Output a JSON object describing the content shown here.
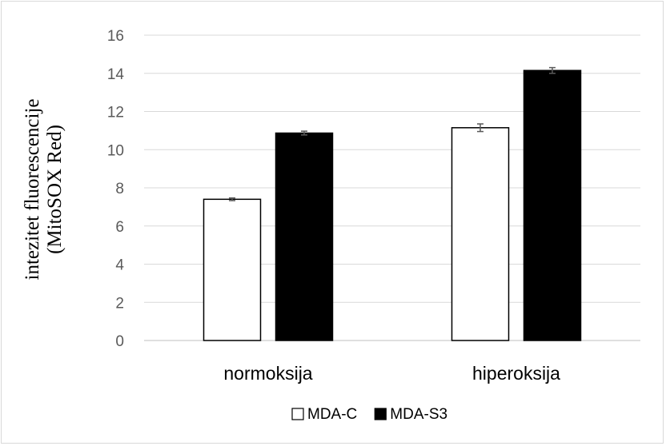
{
  "chart_data": {
    "type": "bar",
    "categories": [
      "normoksija",
      "hiperoksija"
    ],
    "series": [
      {
        "name": "MDA-C",
        "values": [
          7.4,
          11.15
        ],
        "errors": [
          0.07,
          0.2
        ],
        "color": "#ffffff",
        "stroke": "#000000"
      },
      {
        "name": "MDA-S3",
        "values": [
          10.87,
          14.15
        ],
        "errors": [
          0.1,
          0.15
        ],
        "color": "#000000",
        "stroke": "#000000"
      }
    ],
    "ylabel_lines": [
      "intezitet fluorescencije",
      "(MitoSOX Red)"
    ],
    "ylim": [
      0,
      16
    ],
    "yticks": [
      "0",
      "2",
      "4",
      "6",
      "8",
      "10",
      "12",
      "14",
      "16"
    ],
    "grid": true,
    "legend": "bottom",
    "colors": {
      "grid": "#d9d9d9",
      "axis": "#bfbfbf",
      "error_bar": "#595959"
    }
  }
}
